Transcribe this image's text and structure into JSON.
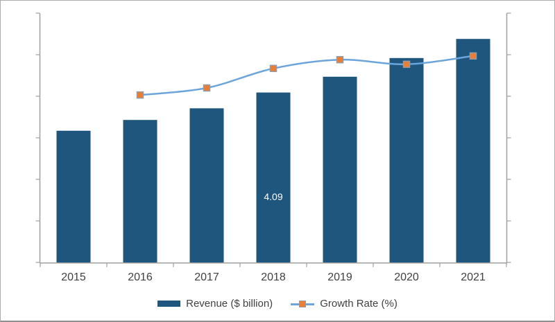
{
  "chart_data": {
    "type": "combo-bar-line",
    "title": "",
    "categories": [
      "2015",
      "2016",
      "2017",
      "2018",
      "2019",
      "2020",
      "2021"
    ],
    "series": [
      {
        "name": "Revenue ($ billion)",
        "type": "bar",
        "color": "#1F567E",
        "values": [
          3.17,
          3.43,
          3.71,
          4.09,
          4.47,
          4.92,
          5.38
        ]
      },
      {
        "name": "Growth Rate (%)",
        "type": "line",
        "color": "#6BA5DB",
        "marker_color": "#ED7D31",
        "marker_border": "#959BA6",
        "values": [
          null,
          4.03,
          4.2,
          4.67,
          4.88,
          4.77,
          4.97
        ]
      }
    ],
    "data_labels": [
      {
        "series": "Revenue ($ billion)",
        "category": "2018",
        "text": "4.09",
        "color": "#FFFFFF"
      }
    ],
    "x_axis": {
      "tick_labels": [
        "2015",
        "2016",
        "2017",
        "2018",
        "2019",
        "2020",
        "2021"
      ],
      "label_color": "#3F3F3F"
    },
    "y_axis_left": {
      "min": 0,
      "max": 6,
      "tick_count": 7,
      "tick_labels_visible": false
    },
    "y_axis_right": {
      "tick_count": 7,
      "tick_labels_visible": false
    },
    "legend": {
      "position": "bottom",
      "entries": [
        "Revenue ($ billion)",
        "Growth Rate (%)"
      ]
    },
    "axis_color": "#A0A0A0",
    "grid": "off",
    "background": "#FFFFFF",
    "border_color": "#ABABAB"
  }
}
